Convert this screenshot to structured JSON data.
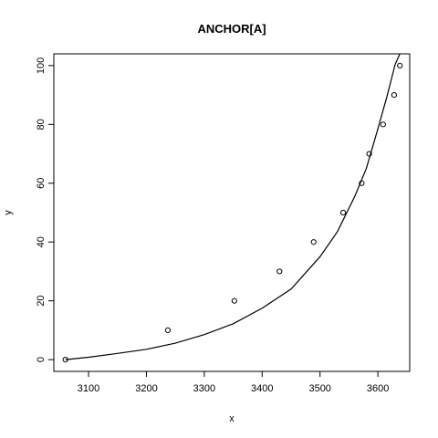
{
  "chart_data": {
    "type": "scatter",
    "title": "ANCHOR[A]",
    "xlabel": "x",
    "ylabel": "y",
    "xlim": [
      3040,
      3655
    ],
    "ylim": [
      -4,
      104
    ],
    "xticks": [
      3100,
      3200,
      3300,
      3400,
      3500,
      3600
    ],
    "yticks": [
      0,
      20,
      40,
      60,
      80,
      100
    ],
    "grid": false,
    "points": {
      "x": [
        3060,
        3237,
        3352,
        3430,
        3489,
        3540,
        3572,
        3585,
        3609,
        3628,
        3638
      ],
      "y": [
        0,
        10,
        20,
        30,
        40,
        50,
        60,
        70,
        80,
        90,
        100
      ]
    },
    "fitted_curve": {
      "x": [
        3060,
        3100,
        3150,
        3200,
        3250,
        3300,
        3350,
        3400,
        3450,
        3500,
        3530,
        3560,
        3580,
        3600,
        3615,
        3630,
        3638
      ],
      "y": [
        0,
        0.8,
        2.1,
        3.5,
        5.6,
        8.5,
        12.2,
        17.5,
        24.0,
        35.0,
        43.5,
        55.5,
        65.0,
        78.5,
        89.0,
        100.5,
        104
      ]
    },
    "colors": {
      "points": "#000000",
      "curve": "#000000",
      "frame": "#000000"
    }
  }
}
